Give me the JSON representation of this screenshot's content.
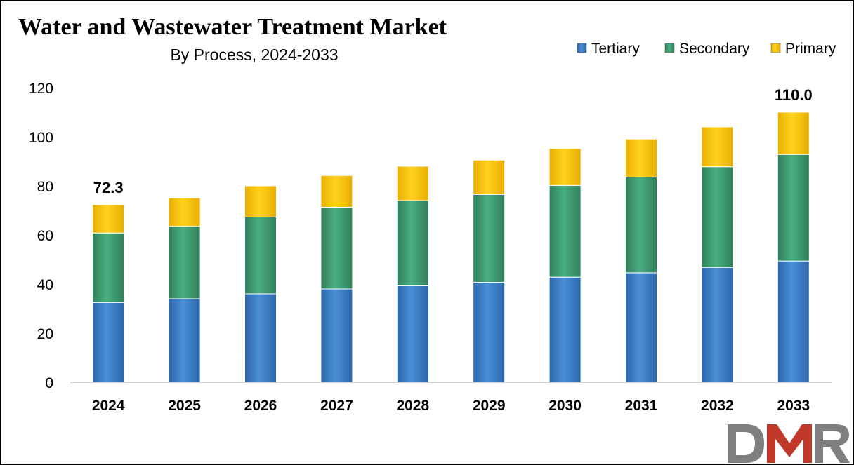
{
  "chart_data": {
    "type": "bar",
    "stacked": true,
    "title": "Water and Wastewater Treatment Market",
    "subtitle": "By Process, 2024-2033",
    "categories": [
      "2024",
      "2025",
      "2026",
      "2027",
      "2028",
      "2029",
      "2030",
      "2031",
      "2032",
      "2033"
    ],
    "series": [
      {
        "name": "Tertiary",
        "color": "#3C7DC4",
        "values": [
          32.5,
          34.0,
          36.0,
          38.0,
          39.3,
          40.7,
          42.8,
          44.6,
          46.8,
          49.4
        ]
      },
      {
        "name": "Secondary",
        "color": "#3F9C72",
        "values": [
          28.3,
          29.5,
          31.3,
          33.3,
          34.7,
          35.8,
          37.4,
          39.0,
          41.0,
          43.4
        ]
      },
      {
        "name": "Primary",
        "color": "#FFC808",
        "values": [
          11.5,
          11.6,
          12.7,
          12.9,
          14.0,
          14.0,
          15.0,
          15.5,
          16.2,
          17.2
        ]
      }
    ],
    "data_labels": [
      {
        "category": "2024",
        "text": "72.3"
      },
      {
        "category": "2033",
        "text": "110.0"
      }
    ],
    "yticks": [
      "0",
      "20",
      "40",
      "60",
      "80",
      "100",
      "120"
    ],
    "ylim": [
      0,
      120
    ],
    "xlabel": "",
    "ylabel": "",
    "grid": false,
    "legend_position": "top-right"
  },
  "watermark": {
    "text": "DMR",
    "colors": {
      "d": "#7f7f7f",
      "m": "#c0392b",
      "r": "#7f7f7f"
    }
  }
}
